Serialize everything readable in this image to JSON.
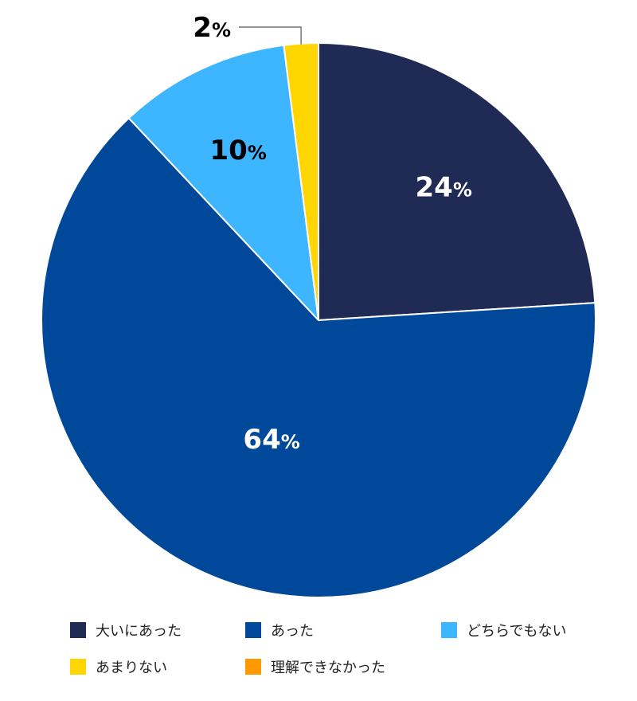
{
  "chart_data": {
    "type": "pie",
    "categories": [
      "大いにあった",
      "あった",
      "どちらでもない",
      "あまりない",
      "理解できなかった"
    ],
    "values": [
      24,
      64,
      10,
      2,
      0
    ],
    "unit": "%",
    "labels": [
      {
        "value": "24",
        "unit": "%"
      },
      {
        "value": "64",
        "unit": "%"
      },
      {
        "value": "10",
        "unit": "%"
      },
      {
        "value": "2",
        "unit": "%"
      },
      {
        "value": "",
        "unit": ""
      }
    ],
    "colors": [
      "#1f2b55",
      "#00489a",
      "#3db5ff",
      "#ffd600",
      "#ff9900"
    ],
    "label_colors": [
      "#ffffff",
      "#ffffff",
      "#000000",
      "#000000",
      "#000000"
    ],
    "start_angle_deg": 0,
    "direction": "clockwise",
    "legend_position": "bottom"
  },
  "legend": {
    "items": [
      {
        "label": "大いにあった",
        "color": "#1f2b55"
      },
      {
        "label": "あった",
        "color": "#00489a"
      },
      {
        "label": "どちらでもない",
        "color": "#3db5ff"
      },
      {
        "label": "あまりない",
        "color": "#ffd600"
      },
      {
        "label": "理解できなかった",
        "color": "#ff9900"
      }
    ]
  }
}
